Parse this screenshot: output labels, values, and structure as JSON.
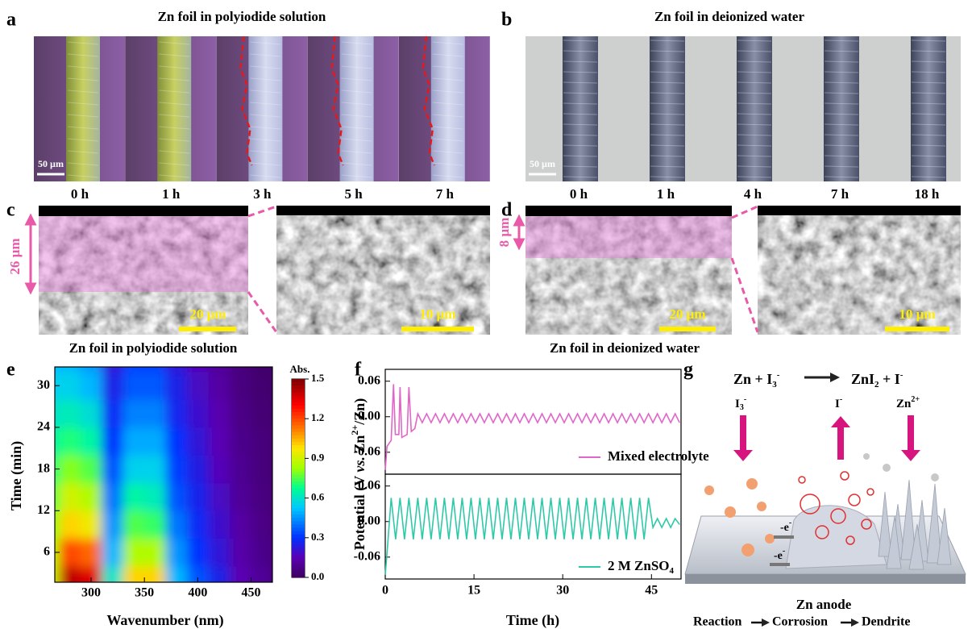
{
  "figure": {
    "a": {
      "label": "a",
      "title": "Zn foil in polyiodide solution",
      "scale": "50 µm",
      "times": [
        "0 h",
        "1 h",
        "3 h",
        "5 h",
        "7 h"
      ]
    },
    "b": {
      "label": "b",
      "title": "Zn foil in deionized water",
      "scale": "50 µm",
      "times": [
        "0 h",
        "1 h",
        "4 h",
        "7 h",
        "18 h"
      ]
    },
    "c": {
      "label": "c",
      "thickness": "26 µm",
      "scale_left": "20 µm",
      "scale_right": "10 µm",
      "caption": "Zn foil in polyiodide solution"
    },
    "d": {
      "label": "d",
      "thickness": "8 µm",
      "scale_left": "20 µm",
      "scale_right": "10 µm",
      "caption": "Zn foil in deionized water"
    },
    "e": {
      "label": "e"
    },
    "f": {
      "label": "f"
    },
    "g": {
      "label": "g",
      "equation": [
        "Zn + I",
        "3",
        "-",
        "ZnI",
        "2",
        " + I",
        "-"
      ],
      "species": [
        [
          "I",
          "3",
          "-"
        ],
        [
          "I",
          "-"
        ],
        [
          "Zn",
          "2+"
        ]
      ],
      "electron": [
        "-e",
        "-"
      ],
      "anode": "Zn anode",
      "steps": [
        "Reaction",
        "Corrosion",
        "Dendrite"
      ]
    }
  },
  "chart_data": [
    {
      "type": "contour",
      "xlabel": "Wavenumber (nm)",
      "ylabel": "Time (min)",
      "x": [
        260,
        280,
        300,
        320,
        340,
        360,
        380,
        400,
        420,
        440,
        460
      ],
      "y": [
        2,
        6,
        10,
        14,
        18,
        22,
        26,
        30,
        34
      ],
      "z": [
        [
          0.9,
          1.4,
          1.35,
          0.6,
          1.0,
          1.0,
          0.5,
          0.35,
          0.25,
          0.15,
          0.1
        ],
        [
          0.85,
          1.2,
          1.15,
          0.5,
          0.85,
          0.85,
          0.45,
          0.3,
          0.22,
          0.13,
          0.08
        ],
        [
          0.8,
          1.0,
          0.95,
          0.45,
          0.75,
          0.72,
          0.4,
          0.28,
          0.2,
          0.12,
          0.07
        ],
        [
          0.75,
          0.9,
          0.85,
          0.4,
          0.65,
          0.62,
          0.35,
          0.26,
          0.18,
          0.1,
          0.06
        ],
        [
          0.7,
          0.8,
          0.75,
          0.35,
          0.55,
          0.55,
          0.32,
          0.24,
          0.16,
          0.09,
          0.05
        ],
        [
          0.65,
          0.7,
          0.65,
          0.3,
          0.48,
          0.48,
          0.3,
          0.22,
          0.15,
          0.08,
          0.05
        ],
        [
          0.6,
          0.62,
          0.58,
          0.28,
          0.42,
          0.42,
          0.27,
          0.2,
          0.14,
          0.07,
          0.04
        ],
        [
          0.55,
          0.55,
          0.5,
          0.25,
          0.36,
          0.36,
          0.25,
          0.18,
          0.12,
          0.06,
          0.03
        ],
        [
          0.5,
          0.5,
          0.45,
          0.22,
          0.32,
          0.32,
          0.22,
          0.16,
          0.1,
          0.05,
          0.02
        ]
      ],
      "xlim": [
        266,
        470
      ],
      "ylim": [
        1.7,
        32.7
      ],
      "xticks": [
        300,
        350,
        400,
        450
      ],
      "yticks": [
        6,
        12,
        18,
        24,
        30
      ],
      "colormap": "jet",
      "colorbar": {
        "label": "Abs.",
        "lim": [
          0,
          1.5
        ],
        "ticks": [
          {
            "value": 0,
            "label": "0.0"
          },
          0.3,
          0.6,
          0.9,
          1.2,
          1.5
        ]
      }
    },
    {
      "type": "line",
      "ylabel": [
        "Potential (V ",
        "vs.",
        " Zn",
        "2+",
        "/Zn)"
      ],
      "xlim": [
        0,
        50
      ],
      "ylim": [
        -0.097,
        0.08
      ],
      "yticks": [
        -0.06,
        {
          "value": 0,
          "label": "0.00"
        },
        0.06
      ],
      "series": [
        {
          "name": "Mixed electrolyte",
          "color": "#e066c8",
          "x": [
            0,
            0.3,
            1.0,
            1.4,
            1.7,
            2.3,
            2.5,
            2.8,
            3.7,
            4.0,
            4.4,
            5.0,
            5.5,
            6.25,
            7,
            7.75,
            8.5,
            9.25,
            10,
            10.75,
            11.5,
            12.25,
            13,
            13.75,
            14.5,
            15.25,
            16,
            16.75,
            17.5,
            18.25,
            19,
            19.75,
            20.5,
            21.25,
            22,
            22.75,
            23.5,
            24.25,
            25,
            25.75,
            26.5,
            27.25,
            28,
            28.75,
            29.5,
            30.25,
            31,
            31.75,
            32.5,
            33.25,
            34,
            34.75,
            35.5,
            36.25,
            37,
            37.75,
            38.5,
            39.25,
            40,
            40.75,
            41.5,
            42.25,
            43,
            43.75,
            44.5,
            45.25,
            46,
            46.75,
            47.5,
            48.25,
            49,
            49.75
          ],
          "values": [
            -0.09,
            -0.05,
            -0.04,
            0.055,
            -0.03,
            -0.03,
            0.05,
            -0.035,
            -0.03,
            0.05,
            -0.025,
            -0.02,
            0.005,
            -0.01,
            0.005,
            -0.01,
            0.005,
            -0.01,
            0.005,
            -0.01,
            0.005,
            -0.01,
            0.005,
            -0.01,
            0.005,
            -0.01,
            0.005,
            -0.01,
            0.005,
            -0.01,
            0.005,
            -0.01,
            0.005,
            -0.01,
            0.005,
            -0.01,
            0.005,
            -0.01,
            0.005,
            -0.01,
            0.005,
            -0.01,
            0.005,
            -0.01,
            0.005,
            -0.01,
            0.005,
            -0.01,
            0.005,
            -0.01,
            0.005,
            -0.01,
            0.005,
            -0.01,
            0.005,
            -0.01,
            0.005,
            -0.01,
            0.005,
            -0.01,
            0.005,
            -0.01,
            0.005,
            -0.01,
            0.005,
            -0.01,
            0.005,
            -0.01,
            0.005,
            -0.01,
            0.005,
            -0.01
          ]
        }
      ]
    },
    {
      "type": "line",
      "xlabel": "Time (h)",
      "xlim": [
        0,
        50
      ],
      "xticks": [
        0,
        15,
        30,
        45
      ],
      "ylim": [
        -0.097,
        0.08
      ],
      "yticks": [
        -0.06,
        {
          "value": 0,
          "label": "0.00"
        },
        0.06
      ],
      "series": [
        {
          "name": [
            "2 M ZnSO",
            "4"
          ],
          "color": "#2ec9a8",
          "x": [
            0,
            0.4,
            1,
            1.75,
            2.5,
            3.25,
            4,
            4.75,
            5.5,
            6.25,
            7,
            7.75,
            8.5,
            9.25,
            10,
            10.75,
            11.5,
            12.25,
            13,
            13.75,
            14.5,
            15.25,
            16,
            16.75,
            17.5,
            18.25,
            19,
            19.75,
            20.5,
            21.25,
            22,
            22.75,
            23.5,
            24.25,
            25,
            25.75,
            26.5,
            27.25,
            28,
            28.75,
            29.5,
            30.25,
            31,
            31.75,
            32.5,
            33.25,
            34,
            34.75,
            35.5,
            36.25,
            37,
            37.75,
            38.5,
            39.25,
            40,
            40.75,
            41.5,
            42.25,
            43,
            43.75,
            44.5,
            45.25,
            46,
            46.75,
            47.5,
            48.25,
            49,
            49.75
          ],
          "values": [
            -0.09,
            -0.04,
            0.04,
            -0.03,
            0.04,
            -0.03,
            0.04,
            -0.03,
            0.04,
            -0.03,
            0.04,
            -0.03,
            0.04,
            -0.03,
            0.04,
            -0.03,
            0.04,
            -0.03,
            0.04,
            -0.03,
            0.04,
            -0.03,
            0.04,
            -0.03,
            0.04,
            -0.03,
            0.04,
            -0.03,
            0.04,
            -0.03,
            0.04,
            -0.03,
            0.04,
            -0.03,
            0.04,
            -0.03,
            0.04,
            -0.03,
            0.04,
            -0.03,
            0.04,
            -0.03,
            0.04,
            -0.03,
            0.04,
            -0.03,
            0.04,
            -0.03,
            0.04,
            -0.03,
            0.04,
            -0.03,
            0.04,
            -0.03,
            0.04,
            -0.03,
            0.04,
            -0.03,
            0.04,
            -0.03,
            0.04,
            -0.01,
            0.005,
            -0.01,
            0.005,
            -0.01,
            0.005,
            -0.005
          ]
        }
      ]
    }
  ]
}
